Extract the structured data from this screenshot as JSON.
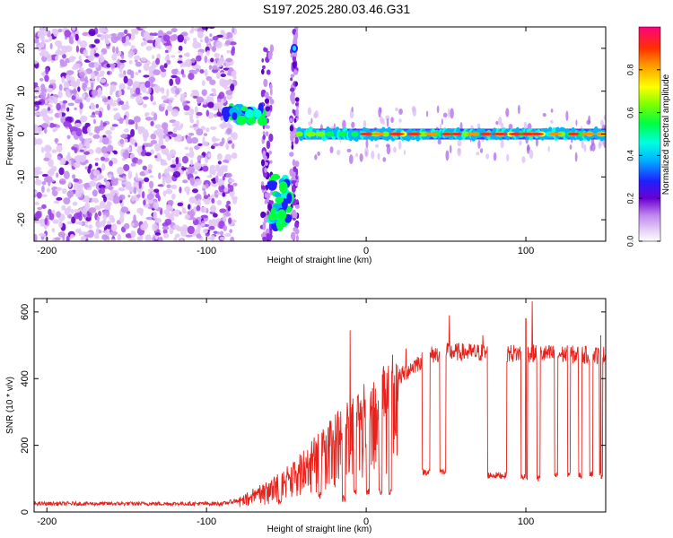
{
  "title": "S197.2025.280.03.46.G31",
  "chart_data": [
    {
      "type": "heatmap",
      "xlabel": "Height of straight line (km)",
      "ylabel": "Frequency (Hz)",
      "xlim": [
        -208,
        150
      ],
      "ylim": [
        -25,
        25
      ],
      "xticks": [
        -200,
        -100,
        0,
        100
      ],
      "xtick_labels": [
        "-200",
        "-100",
        "0",
        "100"
      ],
      "yticks": [
        -20,
        -10,
        0,
        10,
        20
      ],
      "ytick_labels": [
        "-20",
        "-10",
        "0",
        "10",
        "20"
      ],
      "colorbar": {
        "label": "Normalized spectral amplitude",
        "range": [
          0,
          1
        ],
        "ticks": [
          0.0,
          0.2,
          0.4,
          0.6,
          0.8
        ],
        "tick_labels": [
          "0.0",
          "0.2",
          "0.4",
          "0.6",
          "0.8"
        ]
      },
      "features": [
        {
          "name": "noise",
          "x": [
            -208,
            -82
          ],
          "f": [
            -25,
            25
          ]
        },
        {
          "name": "cluster",
          "x": [
            -88,
            -64
          ],
          "f": [
            3,
            6
          ]
        },
        {
          "name": "streak",
          "x": [
            -65,
            -59
          ],
          "f": [
            -25,
            20
          ]
        },
        {
          "name": "cluster",
          "x": [
            -60,
            -48
          ],
          "f": [
            -22,
            -10
          ]
        },
        {
          "name": "streak",
          "x": [
            -47,
            -43
          ],
          "f": [
            -25,
            25
          ]
        },
        {
          "name": "carrier",
          "x": [
            -42,
            150
          ],
          "f": [
            0,
            0
          ]
        }
      ]
    },
    {
      "type": "line",
      "xlabel": "Height of straight line (km)",
      "ylabel": "SNR (10 * v/v)",
      "xlim": [
        -208,
        150
      ],
      "ylim": [
        0,
        640
      ],
      "xticks": [
        -200,
        -100,
        0,
        100
      ],
      "xtick_labels": [
        "-200",
        "-100",
        "0",
        "100"
      ],
      "yticks": [
        0,
        200,
        400,
        600
      ],
      "ytick_labels": [
        "0",
        "200",
        "400",
        "600"
      ],
      "series": [
        {
          "name": "SNR",
          "color": "#e8211b",
          "baseline": [
            [
              -208,
              25
            ],
            [
              -90,
              25
            ],
            [
              -80,
              35
            ],
            [
              -70,
              60
            ],
            [
              -60,
              80
            ],
            [
              -50,
              110
            ],
            [
              -40,
              150
            ],
            [
              -30,
              200
            ],
            [
              -20,
              240
            ],
            [
              -10,
              290
            ],
            [
              0,
              320
            ],
            [
              10,
              360
            ],
            [
              20,
              400
            ],
            [
              30,
              440
            ],
            [
              40,
              470
            ],
            [
              50,
              480
            ],
            [
              150,
              470
            ]
          ],
          "dropouts": [
            [
              -55,
              -53,
              30
            ],
            [
              -30,
              -28,
              50
            ],
            [
              -15,
              -13,
              40
            ],
            [
              -8,
              -6,
              60
            ],
            [
              0,
              2,
              60
            ],
            [
              8,
              10,
              60
            ],
            [
              14,
              16,
              60
            ],
            [
              35,
              40,
              120
            ],
            [
              46,
              50,
              120
            ],
            [
              76,
              88,
              110
            ],
            [
              97,
              101,
              105
            ],
            [
              107,
              109,
              100
            ],
            [
              118,
              120,
              110
            ],
            [
              126,
              128,
              115
            ],
            [
              133,
              135,
              110
            ],
            [
              140,
              142,
              115
            ],
            [
              146,
              148,
              110
            ]
          ],
          "spikes": [
            [
              -10,
              545
            ],
            [
              25,
              490
            ],
            [
              52,
              590
            ],
            [
              73,
              530
            ],
            [
              100,
              580
            ],
            [
              104,
              632
            ],
            [
              147,
              530
            ]
          ]
        }
      ]
    }
  ]
}
